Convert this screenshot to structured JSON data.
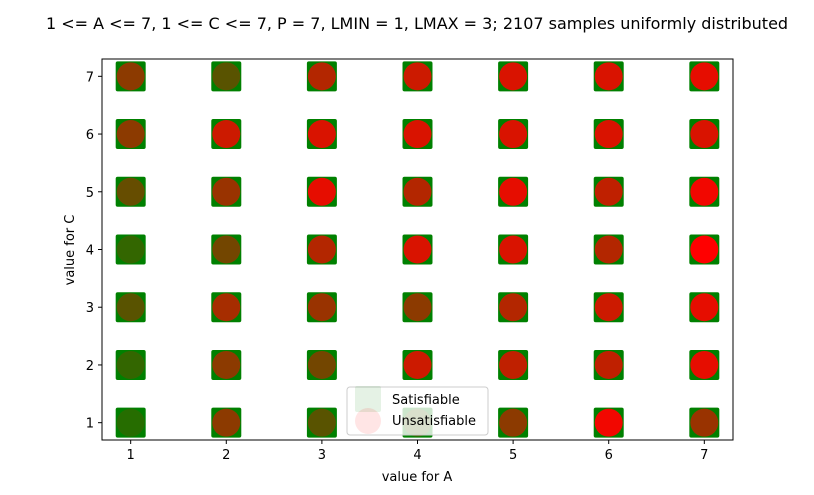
{
  "chart_data": {
    "type": "scatter",
    "title": "1 <= A <= 7, 1 <= C <= 7, P = 7, LMIN = 1, LMAX = 3; 2107 samples uniformly distributed",
    "xlabel": "value for A",
    "ylabel": "value for C",
    "x_ticks": [
      "1",
      "2",
      "3",
      "4",
      "5",
      "6",
      "7"
    ],
    "y_ticks": [
      "1",
      "2",
      "3",
      "4",
      "5",
      "6",
      "7"
    ],
    "xlim": [
      0.7,
      7.3
    ],
    "ylim": [
      0.7,
      7.3
    ],
    "grid": false,
    "legend_position": "bottom-center",
    "series": [
      {
        "name": "Satisfiable",
        "marker": "square",
        "color": "#008000"
      },
      {
        "name": "Unsatisfiable",
        "marker": "circle",
        "color": "#ff0000"
      }
    ],
    "unsat_fraction_rows_c7_to_c1": [
      [
        0.55,
        0.35,
        0.7,
        0.8,
        0.85,
        0.85,
        0.9
      ],
      [
        0.55,
        0.8,
        0.85,
        0.85,
        0.85,
        0.85,
        0.85
      ],
      [
        0.4,
        0.6,
        0.9,
        0.7,
        0.9,
        0.75,
        0.95
      ],
      [
        0.2,
        0.45,
        0.7,
        0.85,
        0.85,
        0.7,
        1.0
      ],
      [
        0.35,
        0.65,
        0.6,
        0.55,
        0.7,
        0.8,
        0.9
      ],
      [
        0.2,
        0.55,
        0.45,
        0.8,
        0.75,
        0.75,
        0.9
      ],
      [
        0.15,
        0.55,
        0.35,
        0.25,
        0.55,
        0.95,
        0.6
      ]
    ]
  }
}
